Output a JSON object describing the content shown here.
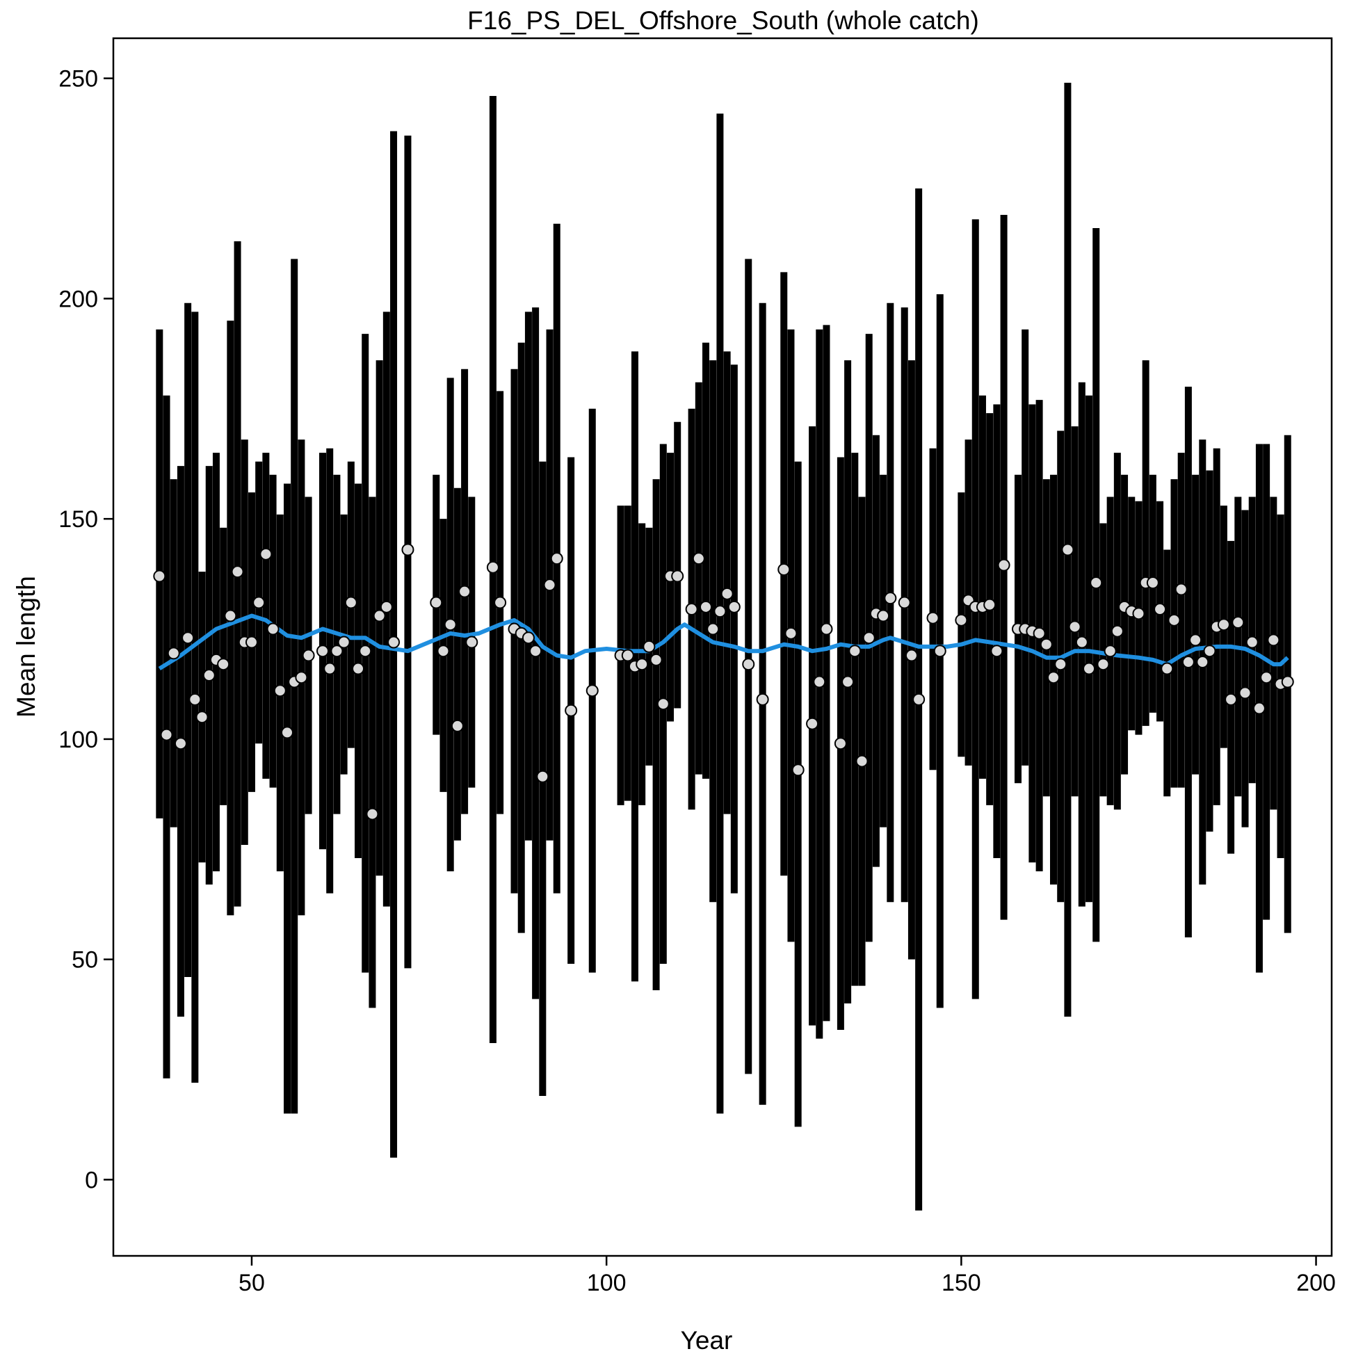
{
  "chart_data": {
    "type": "errorbar",
    "title": "F16_PS_DEL_Offshore_South (whole catch)",
    "x_label": "Year",
    "y_label": "Mean length",
    "xlim": [
      30.5,
      202.2
    ],
    "ylim": [
      -17.3,
      259.1
    ],
    "xticks": [
      50,
      100,
      150,
      200
    ],
    "yticks": [
      0,
      50,
      100,
      150,
      200,
      250
    ],
    "bar_color": "#000000",
    "point_color": "#d9d9d9",
    "x": [
      37,
      38,
      39,
      40,
      41,
      42,
      43,
      44,
      45,
      46,
      47,
      48,
      49,
      50,
      51,
      52,
      53,
      54,
      55,
      56,
      57,
      58,
      60,
      61,
      62,
      63,
      64,
      65,
      66,
      67,
      68,
      69,
      70,
      72,
      76,
      77,
      78,
      79,
      80,
      81,
      84,
      85,
      87,
      88,
      89,
      90,
      91,
      92,
      93,
      95,
      98,
      102,
      103,
      104,
      105,
      106,
      107,
      108,
      109,
      110,
      112,
      113,
      114,
      115,
      116,
      117,
      118,
      120,
      122,
      125,
      126,
      127,
      129,
      130,
      131,
      133,
      134,
      135,
      136,
      137,
      138,
      139,
      140,
      142,
      143,
      144,
      146,
      147,
      150,
      151,
      152,
      153,
      154,
      155,
      156,
      158,
      159,
      160,
      161,
      162,
      163,
      164,
      165,
      166,
      167,
      168,
      169,
      170,
      171,
      172,
      173,
      174,
      175,
      176,
      177,
      178,
      179,
      180,
      181,
      182,
      183,
      184,
      185,
      186,
      187,
      188,
      189,
      190,
      191,
      192,
      193,
      194,
      195,
      196
    ],
    "values": [
      137,
      101,
      119.5,
      99,
      123,
      109,
      105,
      114.5,
      118,
      117,
      128,
      138,
      122,
      122,
      131,
      142,
      125,
      111,
      101.5,
      113,
      114,
      119,
      120,
      116,
      120,
      122,
      131,
      116,
      120,
      83,
      128,
      130,
      122,
      143,
      131,
      120,
      126,
      103,
      133.5,
      122,
      139,
      131,
      125,
      124,
      123,
      120,
      91.5,
      135,
      141,
      106.5,
      111,
      119,
      119,
      116.5,
      117,
      121,
      118,
      108,
      137,
      137,
      129.5,
      141,
      130,
      125,
      129,
      133,
      130,
      117,
      109,
      138.5,
      124,
      93,
      103.5,
      113,
      125,
      99,
      113,
      120,
      95,
      123,
      128.5,
      128,
      132,
      131,
      119,
      109,
      127.5,
      120,
      127,
      131.5,
      130,
      130,
      130.5,
      120,
      139.5,
      125,
      125,
      124.5,
      124,
      121.5,
      114,
      117,
      143,
      125.5,
      122,
      116,
      135.5,
      117,
      120,
      124.5,
      130,
      129,
      128.5,
      135.5,
      135.5,
      129.5,
      116,
      127,
      134,
      117.5,
      122.5,
      117.5,
      120,
      125.5,
      126,
      109,
      126.5,
      110.5,
      122,
      107,
      114,
      122.5,
      112.5,
      113
    ],
    "lower": [
      82,
      23,
      80,
      37,
      46,
      22,
      72,
      67,
      70,
      85,
      60,
      62,
      76,
      88,
      99,
      91,
      89,
      70,
      15,
      15,
      60,
      83,
      75,
      65,
      83,
      92,
      98,
      73,
      47,
      39,
      69,
      62,
      5,
      48,
      101,
      88,
      70,
      77,
      83,
      89,
      31,
      83,
      65,
      56,
      77,
      41,
      19,
      77,
      65,
      49,
      47,
      85,
      86,
      45,
      85,
      94,
      43,
      49,
      104,
      107,
      84,
      92,
      91,
      63,
      15,
      83,
      65,
      24,
      17,
      69,
      54,
      12,
      35,
      32,
      36,
      34,
      40,
      44,
      44,
      54,
      71,
      80,
      63,
      63,
      50,
      -7,
      93,
      39,
      96,
      94,
      41,
      91,
      85,
      73,
      59,
      90,
      94,
      72,
      70,
      87,
      67,
      63,
      37,
      87,
      62,
      63,
      54,
      87,
      85,
      84,
      92,
      102,
      101,
      103,
      106,
      104,
      87,
      89,
      89,
      55,
      92,
      67,
      79,
      85,
      98,
      74,
      87,
      80,
      90,
      47,
      59,
      84,
      73,
      56
    ],
    "upper": [
      193,
      178,
      159,
      162,
      199,
      197,
      138,
      162,
      165,
      148,
      195,
      213,
      168,
      156,
      163,
      165,
      160,
      151,
      158,
      209,
      168,
      155,
      165,
      166,
      160,
      151,
      163,
      158,
      192,
      155,
      186,
      197,
      238,
      237,
      160,
      150,
      182,
      157,
      184,
      155,
      246,
      179,
      184,
      190,
      197,
      198,
      163,
      193,
      217,
      164,
      175,
      153,
      153,
      188,
      149,
      148,
      159,
      167,
      165,
      172,
      175,
      181,
      190,
      186,
      242,
      188,
      185,
      209,
      199,
      206,
      193,
      163,
      171,
      193,
      194,
      164,
      186,
      165,
      155,
      192,
      169,
      160,
      199,
      198,
      186,
      225,
      166,
      201,
      156,
      168,
      218,
      178,
      174,
      176,
      219,
      160,
      193,
      176,
      177,
      159,
      160,
      170,
      249,
      171,
      181,
      178,
      216,
      149,
      155,
      165,
      160,
      155,
      154,
      186,
      160,
      154,
      143,
      159,
      165,
      180,
      160,
      168,
      161,
      166,
      153,
      145,
      155,
      152,
      155,
      167,
      167,
      155,
      151,
      169
    ],
    "smoother": {
      "color": "#1f8fe0",
      "x": [
        37,
        40,
        45,
        50,
        52,
        55,
        57,
        60,
        62,
        64,
        66,
        68,
        70,
        72,
        75,
        78,
        80,
        82,
        85,
        87,
        89,
        91,
        93,
        95,
        97,
        100,
        103,
        106,
        108,
        110,
        111,
        113,
        115,
        118,
        120,
        122,
        125,
        127,
        129,
        131,
        133,
        135,
        137,
        139,
        140,
        142,
        144,
        146,
        148,
        150,
        152,
        154,
        156,
        158,
        160,
        162,
        164,
        166,
        168,
        170,
        172,
        175,
        177,
        179,
        181,
        183,
        186,
        188,
        190,
        192,
        194,
        195,
        196
      ],
      "values": [
        116,
        119,
        125,
        128,
        127,
        123.5,
        123,
        125,
        124,
        123,
        123,
        121,
        120.5,
        120,
        122,
        124,
        123.5,
        124,
        126,
        127,
        125,
        121,
        119,
        118.5,
        120,
        120.5,
        120,
        120,
        122,
        125,
        126,
        124,
        122,
        121,
        120,
        120,
        121.5,
        121,
        120,
        120.5,
        121.5,
        121,
        121,
        122.5,
        123,
        122,
        121,
        121,
        121,
        121.5,
        122.5,
        122,
        121.5,
        121,
        120,
        118.5,
        118.5,
        120,
        120,
        119.5,
        119,
        118.5,
        118,
        117,
        119,
        120.5,
        121,
        121,
        120.5,
        119,
        117,
        117,
        118.5
      ]
    }
  }
}
